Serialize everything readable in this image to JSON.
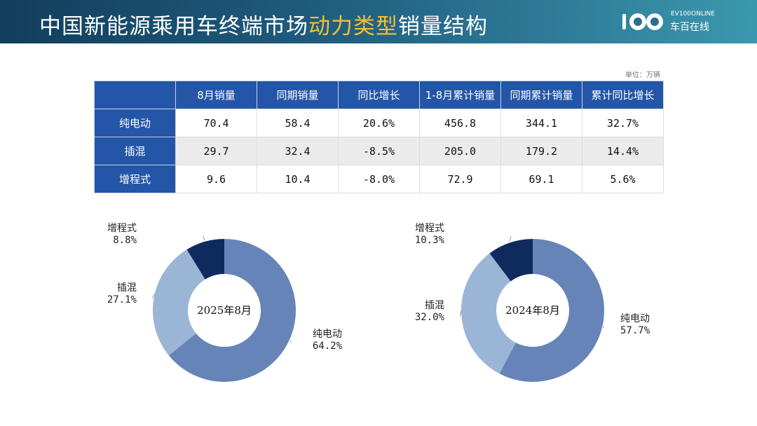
{
  "header": {
    "title_prefix": "中国新能源乘用车终端市场",
    "title_highlight": "动力类型",
    "title_suffix": "销量结构",
    "logo_top": "EV100ONLINE",
    "logo_bottom": "车百在线"
  },
  "colors": {
    "header_gradient_start": "#123e5c",
    "header_gradient_end": "#3a98ae",
    "highlight": "#f2c230",
    "table_header": "#2356a6",
    "bev": "#6684b8",
    "phev": "#9ab5d6",
    "erev": "#0f2b5e"
  },
  "unit_label": "单位：万辆",
  "table": {
    "columns": [
      "",
      "8月销量",
      "同期销量",
      "同比增长",
      "1-8月累计销量",
      "同期累计销量",
      "累计同比增长"
    ],
    "rows": [
      {
        "label": "纯电动",
        "cells": [
          "70.4",
          "58.4",
          "20.6%",
          "456.8",
          "344.1",
          "32.7%"
        ]
      },
      {
        "label": "插混",
        "cells": [
          "29.7",
          "32.4",
          "-8.5%",
          "205.0",
          "179.2",
          "14.4%"
        ]
      },
      {
        "label": "增程式",
        "cells": [
          "9.6",
          "10.4",
          "-8.0%",
          "72.9",
          "69.1",
          "5.6%"
        ]
      }
    ]
  },
  "chart_data": [
    {
      "type": "pie",
      "donut": true,
      "center_label": "2025年8月",
      "categories": [
        "纯电动",
        "插混",
        "增程式"
      ],
      "values": [
        64.2,
        27.1,
        8.8
      ],
      "value_labels": [
        "64.2%",
        "27.1%",
        "8.8%"
      ],
      "colors": [
        "#6684b8",
        "#9ab5d6",
        "#0f2b5e"
      ]
    },
    {
      "type": "pie",
      "donut": true,
      "center_label": "2024年8月",
      "categories": [
        "纯电动",
        "插混",
        "增程式"
      ],
      "values": [
        57.7,
        32.0,
        10.3
      ],
      "value_labels": [
        "57.7%",
        "32.0%",
        "10.3%"
      ],
      "colors": [
        "#6684b8",
        "#9ab5d6",
        "#0f2b5e"
      ]
    }
  ]
}
